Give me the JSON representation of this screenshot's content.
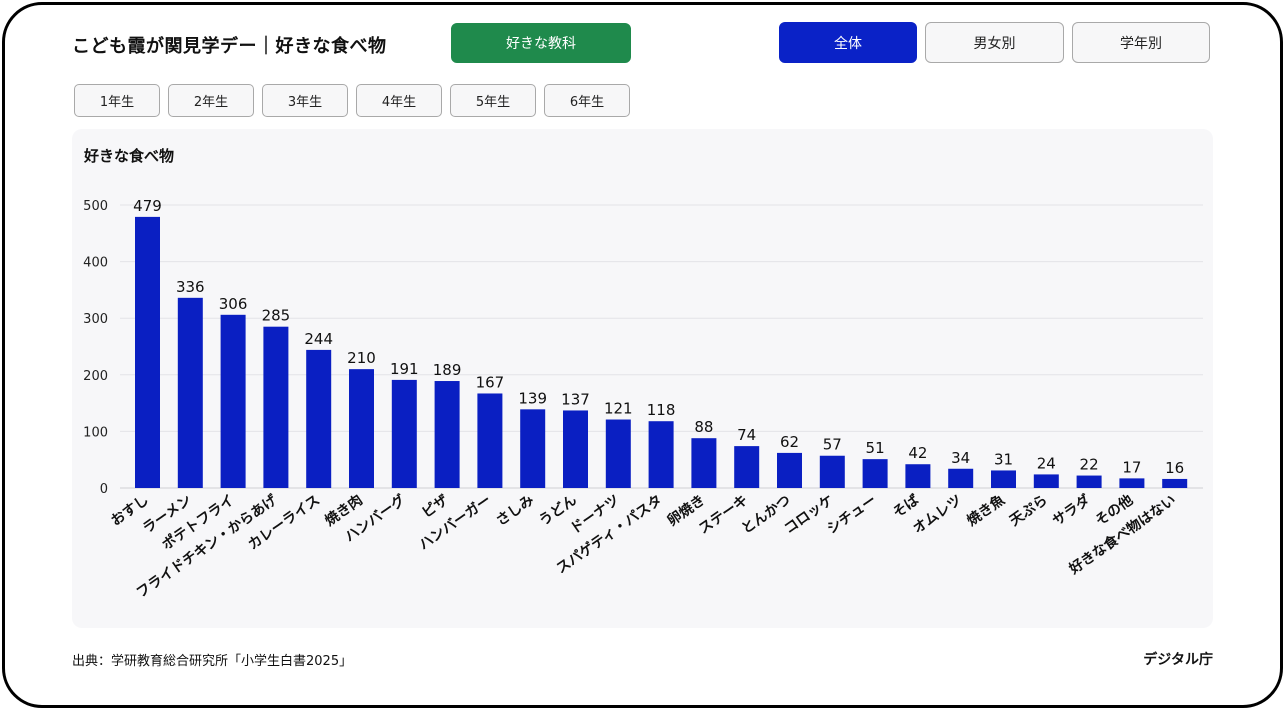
{
  "header": {
    "title": "こども霞が関見学デー｜好きな食べ物",
    "subject_button": "好きな教科"
  },
  "view_tabs": [
    {
      "label": "全体",
      "active": true
    },
    {
      "label": "男女別",
      "active": false
    },
    {
      "label": "学年別",
      "active": false
    }
  ],
  "grade_tabs": [
    "1年生",
    "2年生",
    "3年生",
    "4年生",
    "5年生",
    "6年生"
  ],
  "colors": {
    "bar": "#0a1fc2",
    "active_tab": "#0a22c7",
    "subject_button": "#1f8a4c"
  },
  "chart_data": {
    "type": "bar",
    "title": "好きな食べ物",
    "categories": [
      "おすし",
      "ラーメン",
      "ポテトフライ",
      "フライドチキン・からあげ",
      "カレーライス",
      "焼き肉",
      "ハンバーグ",
      "ピザ",
      "ハンバーガー",
      "さしみ",
      "うどん",
      "ドーナツ",
      "スパゲティ・パスタ",
      "卵焼き",
      "ステーキ",
      "とんかつ",
      "コロッケ",
      "シチュー",
      "そば",
      "オムレツ",
      "焼き魚",
      "天ぷら",
      "サラダ",
      "その他",
      "好きな食べ物はない"
    ],
    "values": [
      479,
      336,
      306,
      285,
      244,
      210,
      191,
      189,
      167,
      139,
      137,
      121,
      118,
      88,
      74,
      62,
      57,
      51,
      42,
      34,
      31,
      24,
      22,
      17,
      16
    ],
    "yticks": [
      0,
      100,
      200,
      300,
      400,
      500
    ],
    "ylim": [
      0,
      500
    ],
    "grid": true
  },
  "footer": {
    "source": "出典：学研教育総合研究所「小学生白書2025」",
    "brand": "デジタル庁"
  }
}
